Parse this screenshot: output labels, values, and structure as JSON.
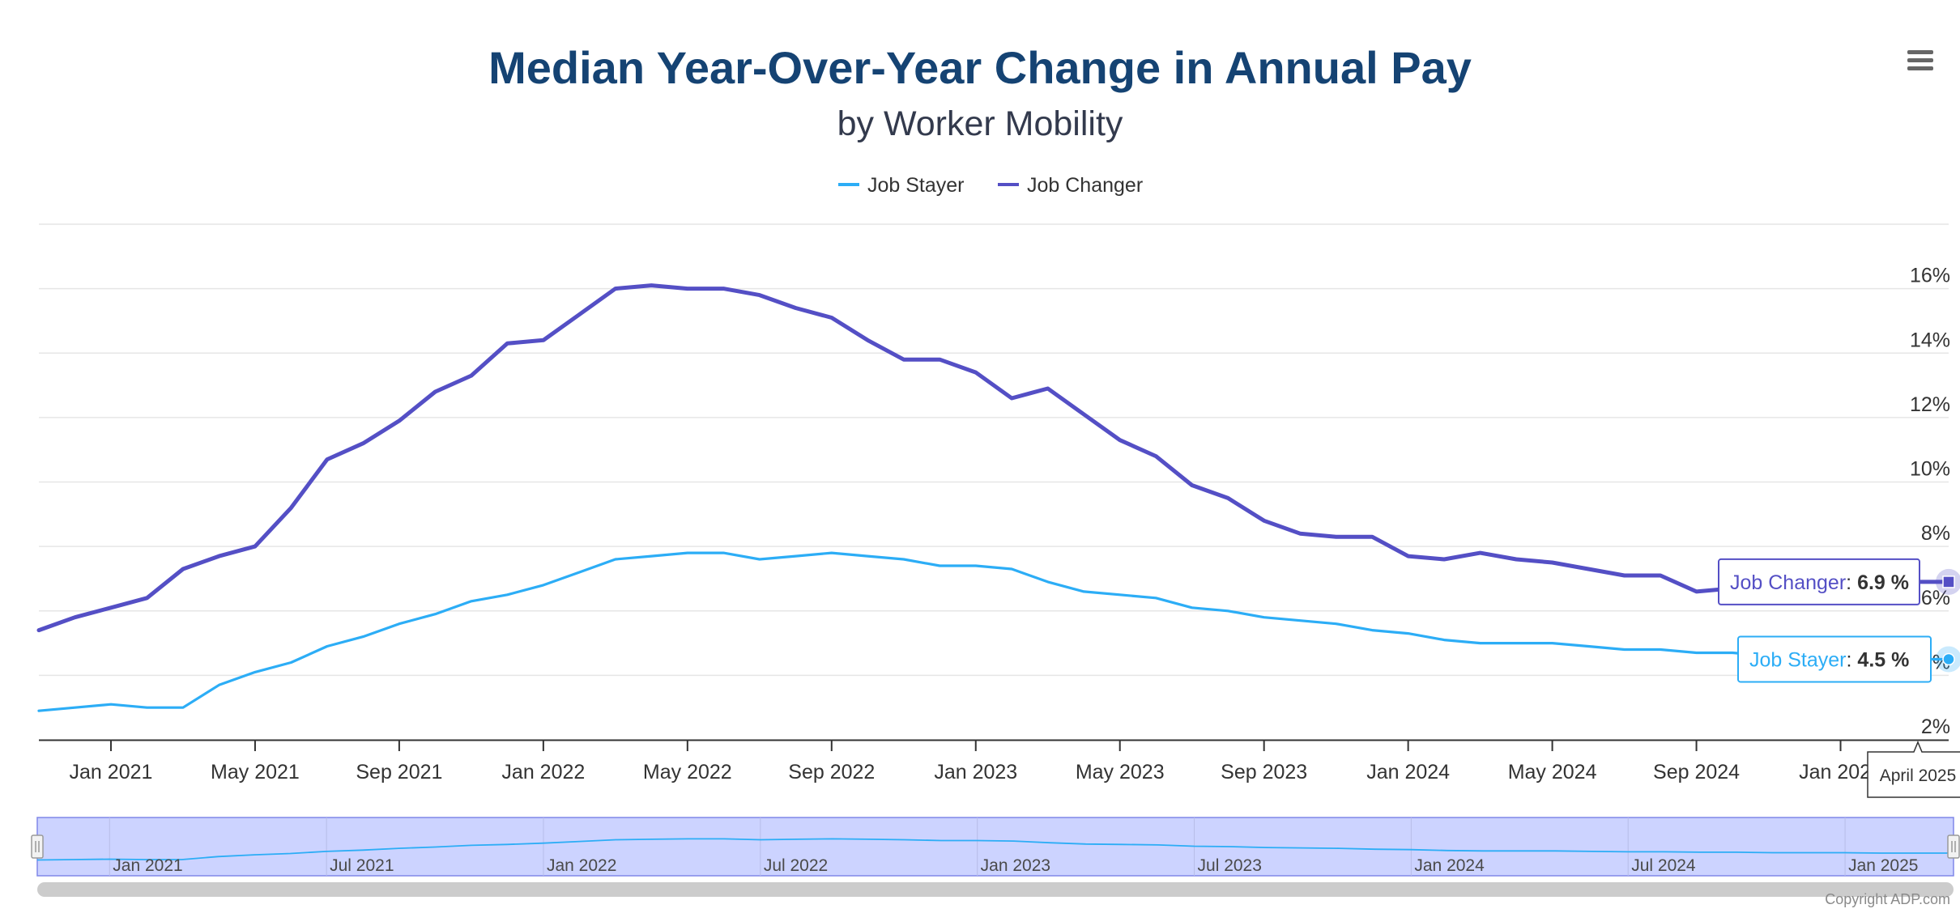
{
  "chart_data": {
    "type": "line",
    "title": "Median Year-Over-Year Change in Annual Pay",
    "subtitle": "by Worker Mobility",
    "x_start": "2020-11",
    "x_end": "2025-04",
    "x_months": [
      "2020-11",
      "2020-12",
      "2021-01",
      "2021-02",
      "2021-03",
      "2021-04",
      "2021-05",
      "2021-06",
      "2021-07",
      "2021-08",
      "2021-09",
      "2021-10",
      "2021-11",
      "2021-12",
      "2022-01",
      "2022-02",
      "2022-03",
      "2022-04",
      "2022-05",
      "2022-06",
      "2022-07",
      "2022-08",
      "2022-09",
      "2022-10",
      "2022-11",
      "2022-12",
      "2023-01",
      "2023-02",
      "2023-03",
      "2023-04",
      "2023-05",
      "2023-06",
      "2023-07",
      "2023-08",
      "2023-09",
      "2023-10",
      "2023-11",
      "2023-12",
      "2024-01",
      "2024-02",
      "2024-03",
      "2024-04",
      "2024-05",
      "2024-06",
      "2024-07",
      "2024-08",
      "2024-09",
      "2024-10",
      "2024-11",
      "2024-12",
      "2025-01",
      "2025-02",
      "2025-03",
      "2025-04"
    ],
    "series": [
      {
        "name": "Job Stayer",
        "color": "#2cadf6",
        "values": [
          2.9,
          3.0,
          3.1,
          3.0,
          3.0,
          3.7,
          4.1,
          4.4,
          4.9,
          5.2,
          5.6,
          5.9,
          6.3,
          6.5,
          6.8,
          7.2,
          7.6,
          7.7,
          7.8,
          7.8,
          7.6,
          7.7,
          7.8,
          7.7,
          7.6,
          7.4,
          7.4,
          7.3,
          6.9,
          6.6,
          6.5,
          6.4,
          6.1,
          6.0,
          5.8,
          5.7,
          5.6,
          5.4,
          5.3,
          5.1,
          5.0,
          5.0,
          5.0,
          4.9,
          4.8,
          4.8,
          4.7,
          4.7,
          4.6,
          4.6,
          4.6,
          4.5,
          4.5,
          4.5
        ]
      },
      {
        "name": "Job Changer",
        "color": "#544fc5",
        "values": [
          5.4,
          5.8,
          6.1,
          6.4,
          7.3,
          7.7,
          8.0,
          9.2,
          10.7,
          11.2,
          11.9,
          12.8,
          13.3,
          14.3,
          14.4,
          15.2,
          16.0,
          16.1,
          16.0,
          16.0,
          15.8,
          15.4,
          15.1,
          14.4,
          13.8,
          13.8,
          13.4,
          12.6,
          12.9,
          12.1,
          11.3,
          10.8,
          9.9,
          9.5,
          8.8,
          8.4,
          8.3,
          8.3,
          7.7,
          7.6,
          7.8,
          7.6,
          7.5,
          7.3,
          7.1,
          7.1,
          6.6,
          6.7,
          6.8,
          6.9,
          6.8,
          6.9,
          6.9,
          6.9
        ]
      }
    ],
    "y_axis": {
      "min": 2,
      "max": 18,
      "tick_step": 2,
      "tick_labels": [
        "2%",
        "4%",
        "6%",
        "8%",
        "10%",
        "12%",
        "14%",
        "16%"
      ],
      "position": "right"
    },
    "x_axis": {
      "tick_labels": [
        "Jan 2021",
        "May 2021",
        "Sep 2021",
        "Jan 2022",
        "May 2022",
        "Sep 2022",
        "Jan 2023",
        "May 2023",
        "Sep 2023",
        "Jan 2024",
        "May 2024",
        "Sep 2024",
        "Jan 2025"
      ]
    },
    "navigator": {
      "tick_labels": [
        "Jan 2021",
        "Jul 2021",
        "Jan 2022",
        "Jul 2022",
        "Jan 2023",
        "Jul 2023",
        "Jan 2024",
        "Jul 2024",
        "Jan 2025"
      ]
    },
    "legend": {
      "position": "top-center",
      "items": [
        "Job Stayer",
        "Job Changer"
      ]
    },
    "grid": true,
    "tooltips": [
      {
        "series": "Job Changer",
        "value": "6.9 %"
      },
      {
        "series": "Job Stayer",
        "value": "4.5 %"
      }
    ],
    "crosshair_label": "April 2025",
    "credits": "Copyright ADP.com"
  },
  "icons": {
    "menu": "hamburger-menu-icon"
  }
}
